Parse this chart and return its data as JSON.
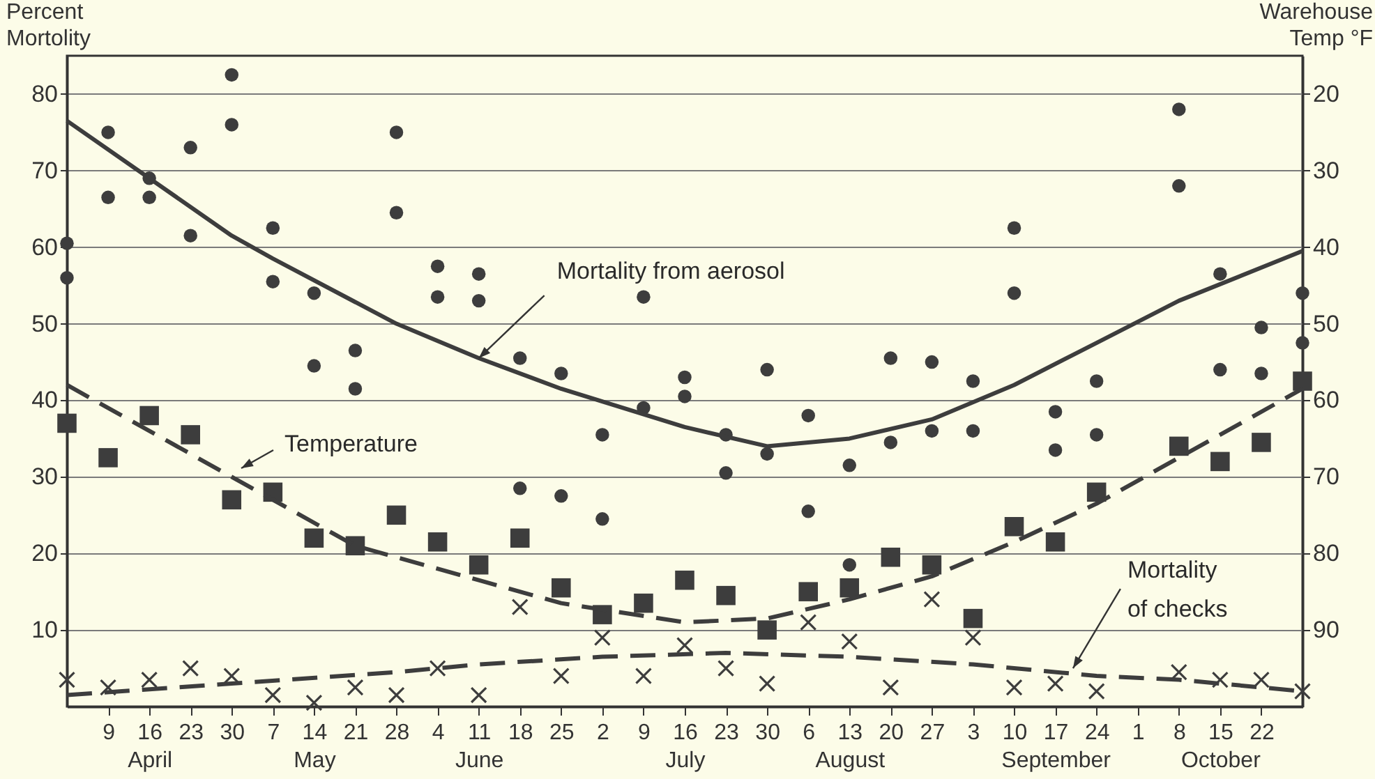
{
  "chart_data": {
    "type": "scatter",
    "ylabel": "Percent\nMortolity",
    "y2label": "Warehouse\nTemp °F",
    "x": [
      "--04-02",
      "--04-09",
      "--04-16",
      "--04-23",
      "--04-30",
      "--05-07",
      "--05-14",
      "--05-21",
      "--05-28",
      "--06-04",
      "--06-11",
      "--06-18",
      "--06-25",
      "--07-02",
      "--07-09",
      "--07-16",
      "--07-23",
      "--07-30",
      "--08-06",
      "--08-13",
      "--08-20",
      "--08-27",
      "--09-03",
      "--09-10",
      "--09-17",
      "--09-24",
      "--10-01",
      "--10-08",
      "--10-15",
      "--10-22",
      "--10-29"
    ],
    "xlim": [
      "--04-02",
      "--10-29"
    ],
    "xticks": [
      {
        "value": "--04-09",
        "label": "9"
      },
      {
        "value": "--04-16",
        "label": "16\nApril"
      },
      {
        "value": "--04-23",
        "label": "23"
      },
      {
        "value": "--04-30",
        "label": "30"
      },
      {
        "value": "--05-07",
        "label": "7"
      },
      {
        "value": "--05-14",
        "label": "14\nMay"
      },
      {
        "value": "--05-21",
        "label": "21"
      },
      {
        "value": "--05-28",
        "label": "28"
      },
      {
        "value": "--06-04",
        "label": "4"
      },
      {
        "value": "--06-11",
        "label": "11\nJune"
      },
      {
        "value": "--06-18",
        "label": "18"
      },
      {
        "value": "--06-25",
        "label": "25"
      },
      {
        "value": "--07-02",
        "label": "2"
      },
      {
        "value": "--07-09",
        "label": "9"
      },
      {
        "value": "--07-16",
        "label": "16\nJuly"
      },
      {
        "value": "--07-23",
        "label": "23"
      },
      {
        "value": "--07-30",
        "label": "30"
      },
      {
        "value": "--08-06",
        "label": "6"
      },
      {
        "value": "--08-13",
        "label": "13\nAugust"
      },
      {
        "value": "--08-20",
        "label": "20"
      },
      {
        "value": "--08-27",
        "label": "27"
      },
      {
        "value": "--09-03",
        "label": "3"
      },
      {
        "value": "--09-10",
        "label": "10"
      },
      {
        "value": "--09-17",
        "label": "17\nSeptember"
      },
      {
        "value": "--09-24",
        "label": "24"
      },
      {
        "value": "--10-01",
        "label": "1"
      },
      {
        "value": "--10-08",
        "label": "8"
      },
      {
        "value": "--10-15",
        "label": "15\nOctober"
      },
      {
        "value": "--10-22",
        "label": "22"
      }
    ],
    "ylim": [
      0,
      85
    ],
    "yticks": [
      10,
      20,
      30,
      40,
      50,
      60,
      70,
      80
    ],
    "y2lim": [
      100,
      15
    ],
    "y2ticks": [
      20,
      30,
      40,
      50,
      60,
      70,
      80,
      90
    ],
    "grid": "y",
    "series": [
      {
        "type": "scatter",
        "marker": "circle",
        "color": "#3d3d3d",
        "values": [
          60.5,
          75,
          69,
          73,
          82.5,
          62.5,
          54,
          46.5,
          75,
          57.5,
          56.5,
          45.5,
          43.5,
          35.5,
          53.5,
          43,
          35.5,
          44,
          38,
          31.5,
          45.5,
          45,
          42.5,
          62.5,
          38.5,
          42.5,
          null,
          78,
          56.5,
          49.5,
          54
        ]
      },
      {
        "type": "scatter",
        "marker": "circle",
        "color": "#3d3d3d",
        "values": [
          56,
          66.5,
          66.5,
          61.5,
          76,
          55.5,
          44.5,
          41.5,
          64.5,
          53.5,
          53,
          28.5,
          27.5,
          24.5,
          39,
          40.5,
          30.5,
          33,
          25.5,
          18.5,
          34.5,
          36,
          36,
          54,
          33.5,
          35.5,
          null,
          68,
          44,
          43.5,
          47.5
        ]
      },
      {
        "type": "scatter",
        "marker": "square",
        "axis": "y2",
        "color": "#3d3d3d",
        "values": [
          63,
          67.5,
          62,
          64.5,
          73,
          72,
          78,
          79,
          75,
          78.5,
          81.5,
          78,
          84.5,
          88,
          86.5,
          83.5,
          85.5,
          90,
          85,
          84.5,
          80.5,
          81.5,
          88.5,
          76.5,
          78.5,
          72,
          null,
          66,
          68,
          65.5,
          57.5
        ]
      },
      {
        "type": "scatter",
        "marker": "cross",
        "color": "#3d3d3d",
        "values": [
          3.5,
          2.5,
          3.5,
          5,
          4,
          1.5,
          0.5,
          2.5,
          1.5,
          5,
          1.5,
          13,
          4,
          9,
          4,
          8,
          5,
          3,
          11,
          8.5,
          2.5,
          14,
          9,
          2.5,
          3,
          2,
          null,
          4.5,
          3.5,
          3.5,
          2
        ]
      },
      {
        "type": "line",
        "line_style": "solid",
        "color": "#3d3d3d",
        "x": [
          "--04-02",
          "--04-16",
          "--04-30",
          "--05-07",
          "--05-28",
          "--06-11",
          "--06-25",
          "--07-16",
          "--07-30",
          "--08-13",
          "--08-27",
          "--09-10",
          "--09-24",
          "--10-08",
          "--10-29"
        ],
        "values": [
          76.5,
          69,
          61.5,
          58.5,
          50,
          45.5,
          41.5,
          36.5,
          34,
          35,
          37.5,
          42,
          47.5,
          53,
          59.5
        ]
      },
      {
        "type": "line",
        "line_style": "dashed",
        "axis": "y2",
        "color": "#3d3d3d",
        "x": [
          "--04-02",
          "--04-30",
          "--05-21",
          "--06-11",
          "--06-25",
          "--07-16",
          "--07-30",
          "--08-13",
          "--08-27",
          "--09-10",
          "--09-24",
          "--10-08",
          "--10-29"
        ],
        "values": [
          58,
          70,
          79,
          83.5,
          86.5,
          89,
          88.5,
          86,
          83,
          78.5,
          73.5,
          67.5,
          58.5
        ]
      },
      {
        "type": "line",
        "line_style": "dashed",
        "color": "#3d3d3d",
        "x": [
          "--04-02",
          "--04-30",
          "--05-28",
          "--06-11",
          "--07-02",
          "--07-23",
          "--08-13",
          "--09-03",
          "--09-24",
          "--10-08",
          "--10-29"
        ],
        "values": [
          1.5,
          3,
          4.5,
          5.5,
          6.5,
          7,
          6.5,
          5.5,
          4,
          3.5,
          2
        ]
      }
    ],
    "annotations": [
      {
        "text": "Mortality  from aerosol",
        "x": "--06-11",
        "y": 45.5
      },
      "Temperature",
      {
        "text": "Mortality\nof checks",
        "x": "--09-20",
        "y": 5
      }
    ]
  }
}
